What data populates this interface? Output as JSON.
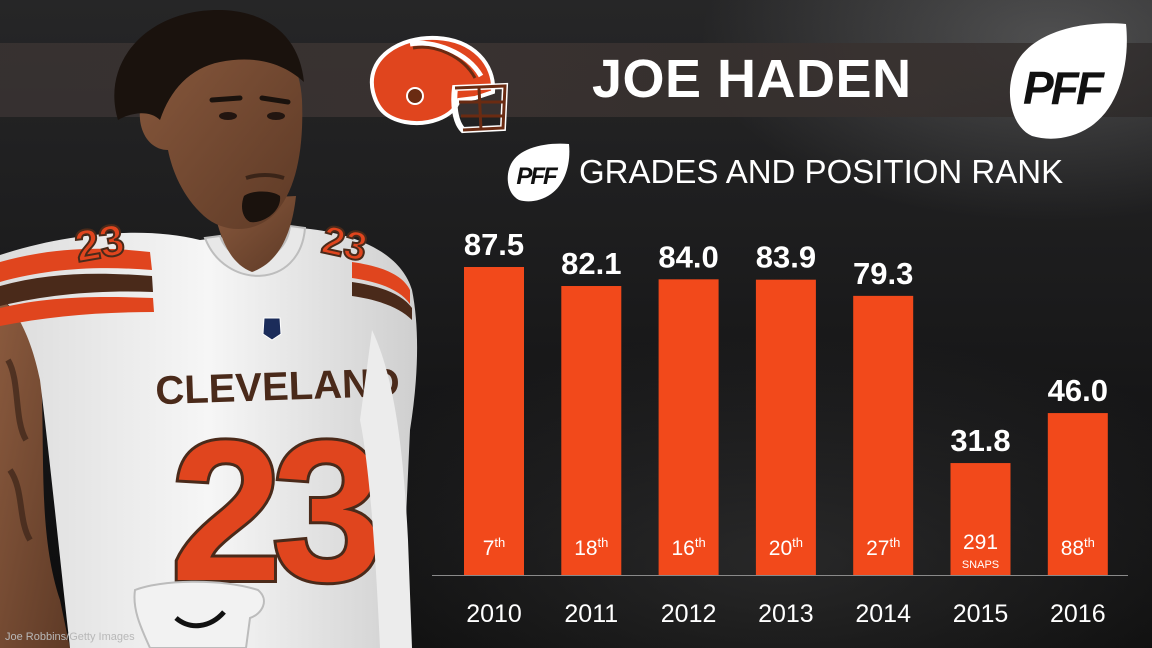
{
  "header": {
    "player_name": "JOE HADEN",
    "brand": "PFF",
    "chart_title": "GRADES AND POSITION RANK"
  },
  "credit": "Joe Robbins/Getty Images",
  "jersey": {
    "team": "CLEVELAND",
    "number": "23"
  },
  "colors": {
    "bar": "#f2491b",
    "background": "#1b1b1c",
    "text": "#ffffff",
    "helmet_orange": "#e0451e",
    "jersey_brown": "#4a2a1a"
  },
  "chart_data": {
    "type": "bar",
    "title": "GRADES AND POSITION RANK",
    "xlabel": "",
    "ylabel": "",
    "ylim": [
      0,
      100
    ],
    "categories": [
      "2010",
      "2011",
      "2012",
      "2013",
      "2014",
      "2015",
      "2016"
    ],
    "values": [
      87.5,
      82.1,
      84.0,
      83.9,
      79.3,
      31.8,
      46.0
    ],
    "value_labels": [
      "87.5",
      "82.1",
      "84.0",
      "83.9",
      "79.3",
      "31.8",
      "46.0"
    ],
    "rank_labels": [
      {
        "num": "7",
        "suffix": "th",
        "note": ""
      },
      {
        "num": "18",
        "suffix": "th",
        "note": ""
      },
      {
        "num": "16",
        "suffix": "th",
        "note": ""
      },
      {
        "num": "20",
        "suffix": "th",
        "note": ""
      },
      {
        "num": "27",
        "suffix": "th",
        "note": ""
      },
      {
        "num": "291",
        "suffix": "",
        "note": "SNAPS"
      },
      {
        "num": "88",
        "suffix": "th",
        "note": ""
      }
    ]
  }
}
